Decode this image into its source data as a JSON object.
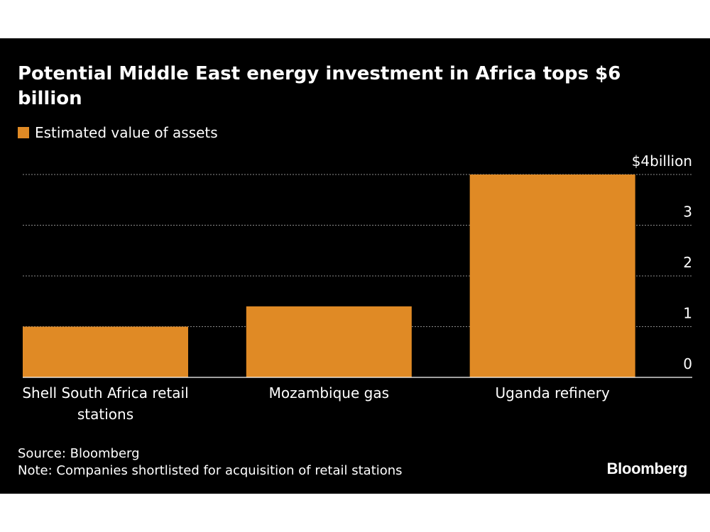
{
  "chart_data": {
    "type": "bar",
    "title": "Potential Middle East energy investment in Africa tops $6 billion",
    "legend": "Estimated value of assets",
    "categories": [
      [
        "Shell South Africa retail",
        "stations"
      ],
      [
        "Mozambique gas"
      ],
      [
        "Uganda refinery"
      ]
    ],
    "values": [
      1.0,
      1.4,
      4.0
    ],
    "yticks": [
      "0",
      "1",
      "2",
      "3",
      "$4billion"
    ],
    "ytick_values": [
      0,
      1,
      2,
      3,
      4
    ],
    "ylim": [
      0,
      4
    ],
    "grid": true,
    "legend_position": "top-left",
    "y_axis_position": "right"
  },
  "colors": {
    "background": "#000000",
    "bar": "#e08a25",
    "gridline": "#8c8c8c",
    "text": "#ffffff"
  },
  "footer": {
    "source": "Source: Bloomberg",
    "note": "Note: Companies shortlisted for acquisition of retail stations",
    "brand": "Bloomberg"
  }
}
